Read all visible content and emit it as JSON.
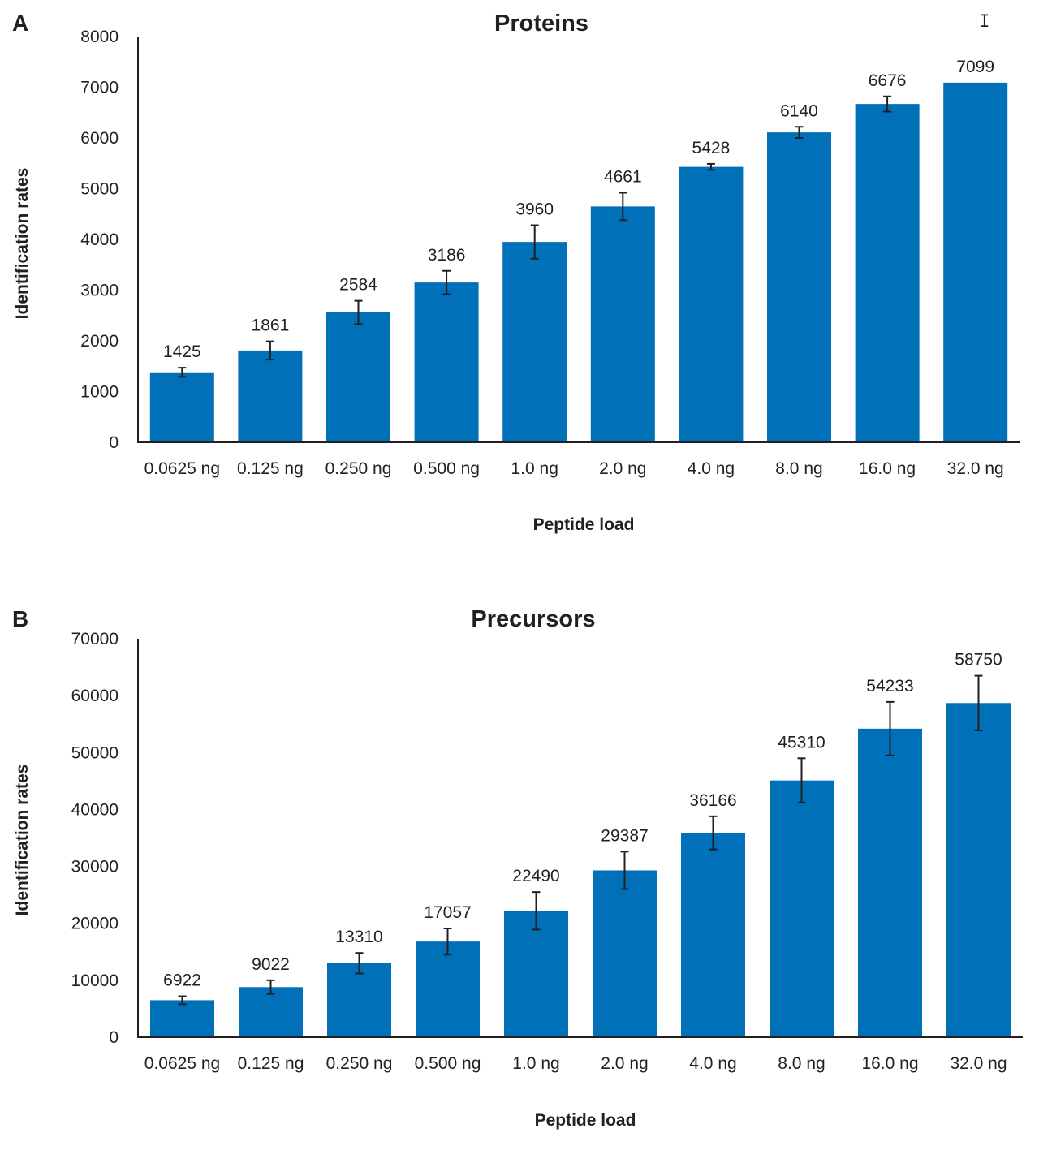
{
  "bar_color": "#0070b8",
  "text_color": "#231f20",
  "chart_data": [
    {
      "id": "A",
      "type": "bar",
      "panel_letter": "A",
      "title": "Proteins",
      "xlabel": "Peptide load",
      "ylabel": "Identification rates",
      "ylim": [
        0,
        8000
      ],
      "yticks": [
        0,
        1000,
        2000,
        3000,
        4000,
        5000,
        6000,
        7000,
        8000
      ],
      "categories": [
        "0.0625 ng",
        "0.125 ng",
        "0.250 ng",
        "0.500 ng",
        "1.0 ng",
        "2.0 ng",
        "4.0 ng",
        "8.0 ng",
        "16.0 ng",
        "32.0 ng"
      ],
      "values": [
        1425,
        1861,
        2584,
        3186,
        3960,
        4661,
        5428,
        6140,
        6676,
        7099
      ],
      "bar_values": [
        1380,
        1810,
        2560,
        3150,
        3950,
        4650,
        5430,
        6110,
        6670,
        7090
      ],
      "errors": [
        90,
        180,
        230,
        230,
        330,
        270,
        60,
        110,
        150,
        0
      ],
      "legend_marker": "I",
      "legend": "top-right"
    },
    {
      "id": "B",
      "type": "bar",
      "panel_letter": "B",
      "title": "Precursors",
      "xlabel": "Peptide load",
      "ylabel": "Identification rates",
      "ylim": [
        0,
        70000
      ],
      "yticks": [
        0,
        10000,
        20000,
        30000,
        40000,
        50000,
        60000,
        70000
      ],
      "categories": [
        "0.0625 ng",
        "0.125 ng",
        "0.250 ng",
        "0.500 ng",
        "1.0 ng",
        "2.0 ng",
        "4.0 ng",
        "8.0 ng",
        "16.0 ng",
        "32.0 ng"
      ],
      "values": [
        6922,
        9022,
        13310,
        17057,
        22490,
        29387,
        36166,
        45310,
        54233,
        58750
      ],
      "bar_values": [
        6500,
        8800,
        13000,
        16800,
        22200,
        29300,
        35900,
        45100,
        54200,
        58700
      ],
      "errors": [
        700,
        1200,
        1800,
        2300,
        3300,
        3300,
        2900,
        3900,
        4700,
        4800
      ]
    }
  ]
}
